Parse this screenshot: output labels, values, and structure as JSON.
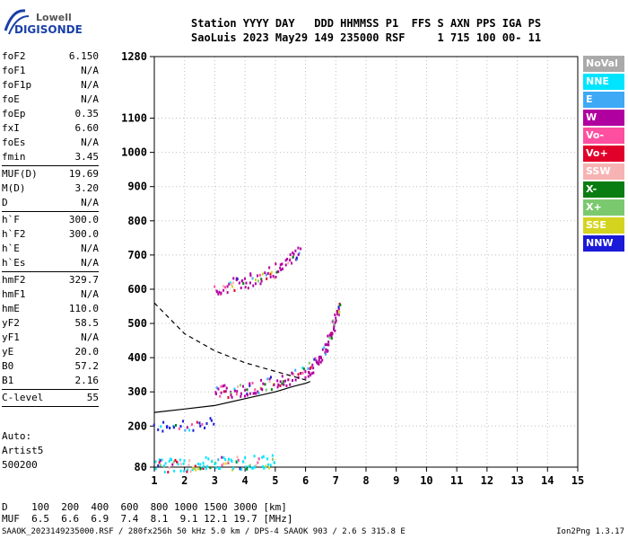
{
  "logo": {
    "line1": "Lowell",
    "line2": "DIGISONDE"
  },
  "header": {
    "labels": "Station YYYY DAY   DDD HHMMSS P1  FFS S AXN PPS IGA PS",
    "values": "SaoLuis 2023 May29 149 235000 RSF     1 715 100 00- 11"
  },
  "params": [
    {
      "k": "foF2",
      "v": "6.150"
    },
    {
      "k": "foF1",
      "v": "N/A"
    },
    {
      "k": "foF1p",
      "v": "N/A"
    },
    {
      "k": "foE",
      "v": "N/A"
    },
    {
      "k": "foEp",
      "v": "0.35"
    },
    {
      "k": "fxI",
      "v": "6.60"
    },
    {
      "k": "foEs",
      "v": "N/A"
    },
    {
      "k": "fmin",
      "v": "3.45"
    },
    {
      "k": "MUF(D)",
      "v": "19.69"
    },
    {
      "k": "M(D)",
      "v": "3.20"
    },
    {
      "k": "D",
      "v": "N/A"
    },
    {
      "k": "h`F",
      "v": "300.0"
    },
    {
      "k": "h`F2",
      "v": "300.0"
    },
    {
      "k": "h`E",
      "v": "N/A"
    },
    {
      "k": "h`Es",
      "v": "N/A"
    },
    {
      "k": "hmF2",
      "v": "329.7"
    },
    {
      "k": "hmF1",
      "v": "N/A"
    },
    {
      "k": "hmE",
      "v": "110.0"
    },
    {
      "k": "yF2",
      "v": "58.5"
    },
    {
      "k": "yF1",
      "v": "N/A"
    },
    {
      "k": "yE",
      "v": "20.0"
    },
    {
      "k": "B0",
      "v": "57.2"
    },
    {
      "k": "B1",
      "v": "2.16"
    },
    {
      "k": "C-level",
      "v": "55"
    }
  ],
  "auto": {
    "line1": "Auto:",
    "line2": "Artist5",
    "line3": "500200"
  },
  "legend": [
    {
      "label": "NoVal",
      "color": "#aaaaaa"
    },
    {
      "label": "NNE",
      "color": "#00e5ff"
    },
    {
      "label": "E",
      "color": "#3fa9f5"
    },
    {
      "label": "W",
      "color": "#b0009f"
    },
    {
      "label": "Vo-",
      "color": "#ff4fa0"
    },
    {
      "label": "Vo+",
      "color": "#e0002a"
    },
    {
      "label": "SSW",
      "color": "#f7b3b3"
    },
    {
      "label": "X-",
      "color": "#0a7d12"
    },
    {
      "label": "X+",
      "color": "#7bc96f"
    },
    {
      "label": "SSE",
      "color": "#d4d420"
    },
    {
      "label": "NNW",
      "color": "#1a1ad9"
    }
  ],
  "muf_table": {
    "row1": "D    100  200  400  600  800 1000 1500 3000 [km]",
    "row2": "MUF  6.5  6.6  6.9  7.4  8.1  9.1 12.1 19.7 [MHz]"
  },
  "footer": {
    "left": "SAAOK_2023149235000.RSF / 280fx256h 50 kHz 5.0 km / DPS-4 SAAOK 903 / 2.6 S 315.8 E",
    "right": "Ion2Png 1.3.17"
  },
  "chart_data": {
    "type": "scatter",
    "title": "",
    "xlabel": "",
    "ylabel": "",
    "xlim": [
      1,
      15
    ],
    "ylim": [
      80,
      1280
    ],
    "x_ticks": [
      1,
      2,
      3,
      4,
      5,
      6,
      7,
      8,
      9,
      10,
      11,
      12,
      13,
      14,
      15
    ],
    "y_ticks": [
      80,
      200,
      300,
      400,
      500,
      600,
      700,
      800,
      900,
      1000,
      1100,
      1280
    ],
    "grid": true,
    "series": [
      {
        "name": "F2 trace",
        "color": "#b0009f",
        "points": [
          [
            3.0,
            300
          ],
          [
            3.5,
            305
          ],
          [
            4.0,
            312
          ],
          [
            4.5,
            322
          ],
          [
            5.0,
            330
          ],
          [
            5.5,
            345
          ],
          [
            6.0,
            360
          ],
          [
            6.3,
            385
          ],
          [
            6.6,
            420
          ],
          [
            6.8,
            470
          ],
          [
            7.0,
            520
          ],
          [
            7.1,
            550
          ]
        ]
      },
      {
        "name": "2F trace",
        "color": "#b0009f",
        "points": [
          [
            3.0,
            600
          ],
          [
            3.5,
            615
          ],
          [
            4.0,
            625
          ],
          [
            4.5,
            640
          ],
          [
            5.0,
            660
          ],
          [
            5.5,
            690
          ],
          [
            5.8,
            720
          ]
        ]
      },
      {
        "name": "Es trace",
        "color": "#00e5ff",
        "points": [
          [
            1.0,
            85
          ],
          [
            1.5,
            88
          ],
          [
            2.0,
            90
          ],
          [
            2.5,
            92
          ],
          [
            3.0,
            95
          ],
          [
            3.5,
            95
          ],
          [
            4.0,
            97
          ],
          [
            4.5,
            98
          ],
          [
            5.0,
            100
          ]
        ]
      },
      {
        "name": "2Es trace",
        "color": "#1a1ad9",
        "points": [
          [
            1.0,
            210
          ],
          [
            2.0,
            205
          ],
          [
            3.0,
            210
          ]
        ]
      }
    ],
    "profile_solid": [
      [
        1.0,
        240
      ],
      [
        2.0,
        250
      ],
      [
        3.0,
        260
      ],
      [
        4.0,
        280
      ],
      [
        5.0,
        300
      ],
      [
        5.6,
        316
      ],
      [
        6.0,
        325
      ],
      [
        6.15,
        330
      ]
    ],
    "profile_dashed": [
      [
        1.0,
        560
      ],
      [
        2.0,
        470
      ],
      [
        3.0,
        420
      ],
      [
        4.0,
        385
      ],
      [
        5.0,
        360
      ],
      [
        6.0,
        335
      ],
      [
        6.15,
        330
      ]
    ]
  }
}
